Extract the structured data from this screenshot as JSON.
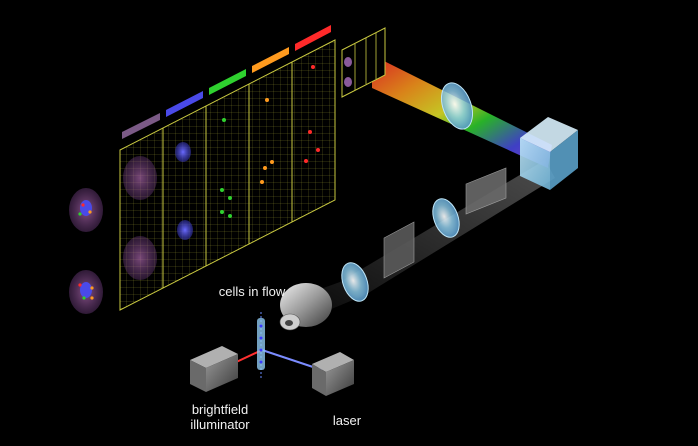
{
  "labels": {
    "cells_in_flow": "cells in flow",
    "brightfield": "brightfield\nilluminator",
    "brightfield_line1": "brightfield",
    "brightfield_line2": "illuminator",
    "laser": "laser"
  },
  "channels": [
    {
      "color": "#7b5a86"
    },
    {
      "color": "#4a4ae8"
    },
    {
      "color": "#2fd12f"
    },
    {
      "color": "#ff9a1e"
    },
    {
      "color": "#ff2a2a"
    }
  ],
  "colors": {
    "background": "#000000",
    "grid": "#c8c840",
    "optics": "#8fd0f0",
    "beam_blue": "#7b8cff",
    "beam_red": "#ff3030"
  }
}
